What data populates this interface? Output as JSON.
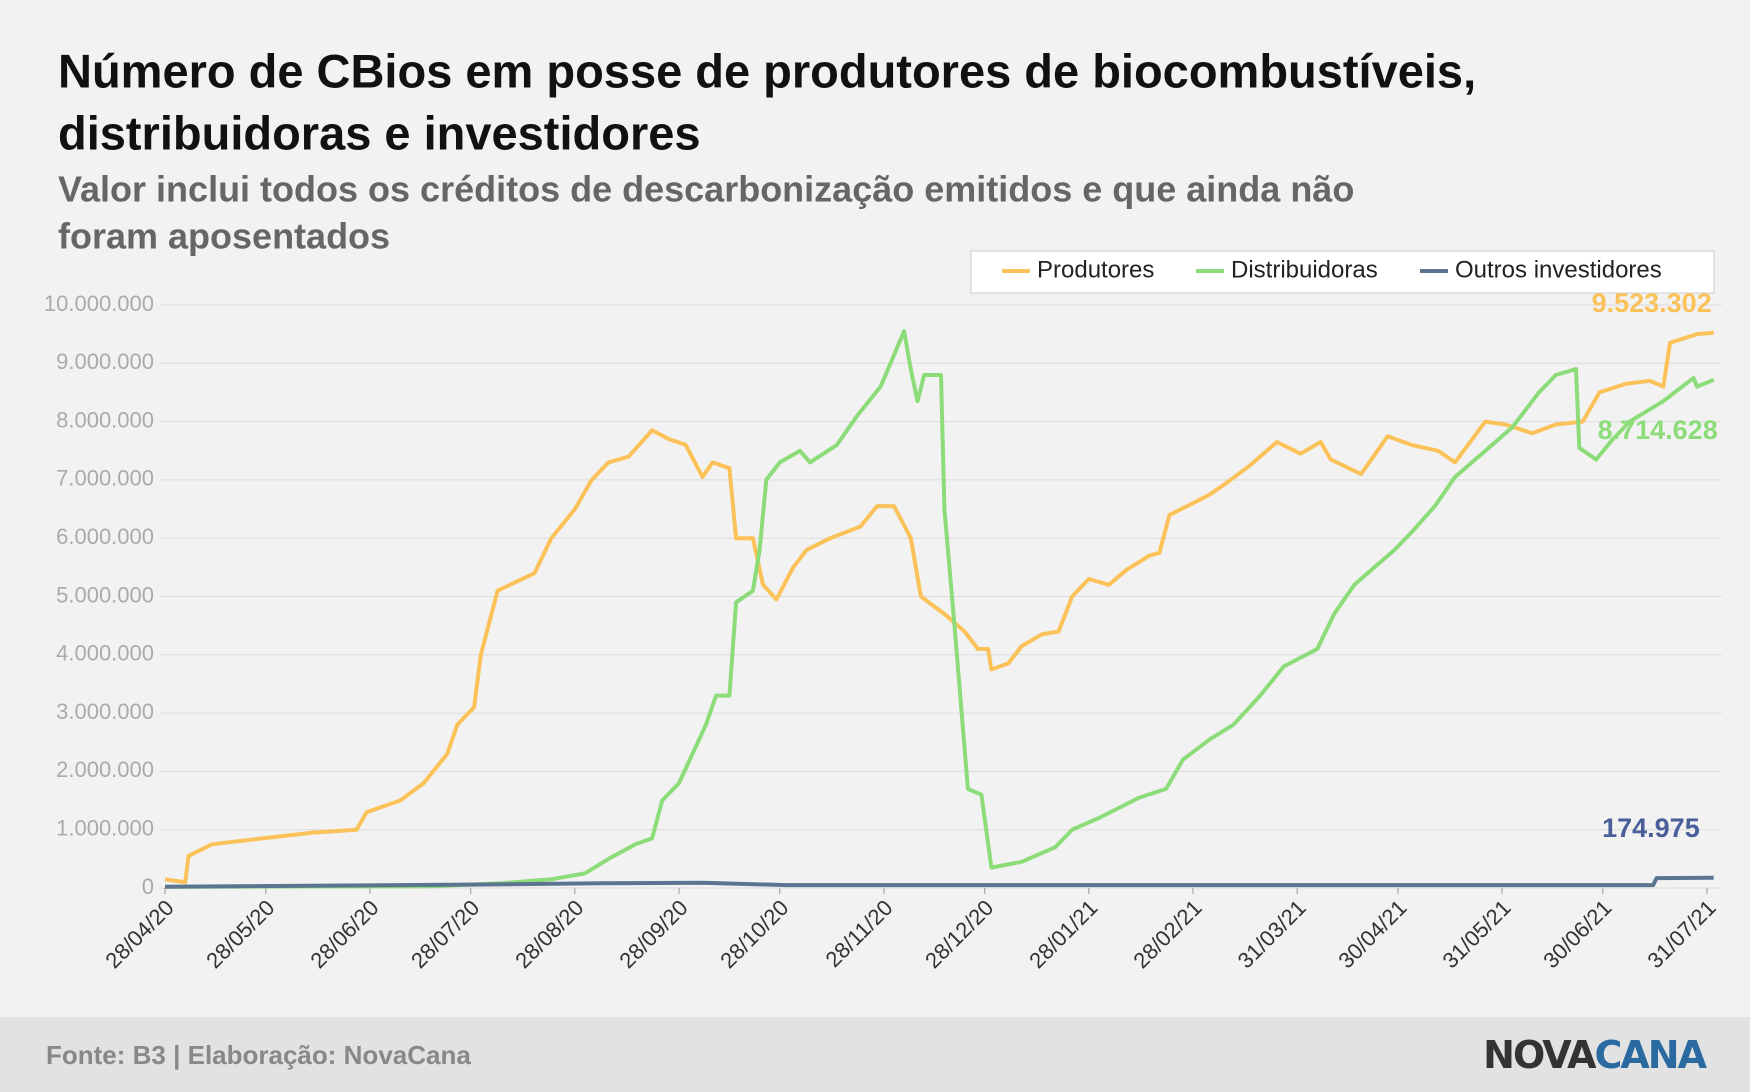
{
  "chart_data": {
    "type": "line",
    "title": [
      "Número de CBios em posse de produtores de biocombustíveis,",
      "distribuidoras e investidores"
    ],
    "subtitle": [
      "Valor inclui todos os créditos de descarbonização emitidos e que ainda não",
      "foram aposentados"
    ],
    "source": "Fonte: B3 | Elaboração: NovaCana",
    "logo": [
      "NOVA",
      "CANA"
    ],
    "ylim": [
      0,
      10000000
    ],
    "yticks": [
      0,
      {
        "value": 1000000,
        "label": "1.000.000"
      },
      {
        "value": 2000000,
        "label": "2.000.000"
      },
      {
        "value": 3000000,
        "label": "3.000.000"
      },
      {
        "value": 4000000,
        "label": "4.000.000"
      },
      {
        "value": 5000000,
        "label": "5.000.000"
      },
      {
        "value": 6000000,
        "label": "6.000.000"
      },
      {
        "value": 7000000,
        "label": "7.000.000"
      },
      {
        "value": 8000000,
        "label": "8.000.000"
      },
      {
        "value": 9000000,
        "label": "9.000.000"
      },
      {
        "value": 10000000,
        "label": "10.000.000"
      }
    ],
    "xlim": [
      "28/04/20",
      "02/08/21"
    ],
    "xticks": [
      "28/04/20",
      "28/05/20",
      "28/06/20",
      "28/07/20",
      "28/08/20",
      "28/09/20",
      "28/10/20",
      "28/11/20",
      "28/12/20",
      "28/01/21",
      "28/02/21",
      "31/03/21",
      "30/04/21",
      "31/05/21",
      "30/06/21",
      "31/07/21"
    ],
    "grid": true,
    "series": [
      {
        "name": "Produtores",
        "color": "#fcc25a",
        "x": [
          "28/04/20",
          "04/05/20",
          "05/05/20",
          "12/05/20",
          "27/05/20",
          "11/06/20",
          "24/06/20",
          "27/06/20",
          "07/07/20",
          "14/07/20",
          "21/07/20",
          "24/07/20",
          "29/07/20",
          "31/07/20",
          "05/08/20",
          "16/08/20",
          "21/08/20",
          "28/08/20",
          "02/09/20",
          "07/09/20",
          "13/09/20",
          "20/09/20",
          "25/09/20",
          "30/09/20",
          "05/10/20",
          "08/10/20",
          "13/10/20",
          "15/10/20",
          "20/10/20",
          "23/10/20",
          "27/10/20",
          "01/11/20",
          "05/11/20",
          "12/11/20",
          "21/11/20",
          "26/11/20",
          "01/12/20",
          "06/12/20",
          "09/12/20",
          "16/12/20",
          "22/12/20",
          "26/12/20",
          "29/12/20",
          "30/12/20",
          "04/01/21",
          "08/01/21",
          "14/01/21",
          "19/01/21",
          "23/01/21",
          "28/01/21",
          "03/02/21",
          "08/02/21",
          "15/02/21",
          "18/02/21",
          "21/02/21",
          "28/02/21",
          "05/03/21",
          "10/03/21",
          "17/03/21",
          "25/03/21",
          "01/04/21",
          "07/04/21",
          "10/04/21",
          "19/04/21",
          "27/04/21",
          "04/05/21",
          "12/05/21",
          "17/05/21",
          "26/05/21",
          "01/06/21",
          "09/06/21",
          "16/06/21",
          "24/06/21",
          "29/06/21",
          "07/07/21",
          "14/07/21",
          "18/07/21",
          "20/07/21",
          "28/07/21",
          "02/08/21"
        ],
        "values": [
          150000,
          100000,
          550000,
          750000,
          850000,
          950000,
          1000000,
          1300000,
          1500000,
          1800000,
          2300000,
          2800000,
          3100000,
          4000000,
          5100000,
          5400000,
          6000000,
          6500000,
          7000000,
          7300000,
          7400000,
          7850000,
          7700000,
          7600000,
          7050000,
          7300000,
          7200000,
          6000000,
          6000000,
          5200000,
          4950000,
          5500000,
          5800000,
          6000000,
          6200000,
          6550000,
          6550000,
          6000000,
          5000000,
          4700000,
          4400000,
          4100000,
          4100000,
          3750000,
          3850000,
          4150000,
          4350000,
          4400000,
          5000000,
          5300000,
          5200000,
          5450000,
          5700000,
          5750000,
          6400000,
          6600000,
          6750000,
          6950000,
          7250000,
          7650000,
          7450000,
          7650000,
          7350000,
          7100000,
          7750000,
          7600000,
          7500000,
          7300000,
          8000000,
          7950000,
          7800000,
          7950000,
          8000000,
          8500000,
          8650000,
          8700000,
          8600000,
          9350000,
          9500000,
          9523302
        ],
        "value_labels": [
          null,
          null,
          null,
          null,
          null,
          null,
          null,
          null,
          null,
          null,
          null,
          null,
          null,
          null,
          null,
          null,
          null,
          null,
          null,
          null,
          null,
          null,
          null,
          null,
          null,
          null,
          null,
          null,
          null,
          null,
          null,
          null,
          null,
          null,
          null,
          null,
          null,
          null,
          null,
          null,
          null,
          null,
          null,
          null,
          null,
          null,
          null,
          null,
          null,
          null,
          null,
          null,
          null,
          null,
          null,
          null,
          null,
          null,
          null,
          null,
          null,
          null,
          null,
          null,
          null,
          null,
          null,
          null,
          null,
          null,
          null,
          null,
          null,
          null,
          null,
          null,
          null,
          null,
          null,
          "9.523.302"
        ]
      },
      {
        "name": "Distribuidoras",
        "color": "#8ddc7a",
        "x": [
          "28/04/20",
          "17/07/20",
          "06/08/20",
          "21/08/20",
          "31/08/20",
          "07/09/20",
          "15/09/20",
          "20/09/20",
          "23/09/20",
          "28/09/20",
          "06/10/20",
          "09/10/20",
          "13/10/20",
          "15/10/20",
          "20/10/20",
          "22/10/20",
          "24/10/20",
          "28/10/20",
          "03/11/20",
          "06/11/20",
          "14/11/20",
          "20/11/20",
          "27/11/20",
          "04/12/20",
          "06/12/20",
          "08/12/20",
          "10/12/20",
          "15/12/20",
          "16/12/20",
          "19/12/20",
          "23/12/20",
          "27/12/20",
          "30/12/20",
          "08/01/21",
          "18/01/21",
          "23/01/21",
          "31/01/21",
          "12/02/21",
          "20/02/21",
          "25/02/21",
          "05/03/21",
          "12/03/21",
          "20/03/21",
          "27/03/21",
          "06/04/21",
          "11/04/21",
          "17/04/21",
          "29/04/21",
          "04/05/21",
          "11/05/21",
          "17/05/21",
          "26/05/21",
          "03/06/21",
          "11/06/21",
          "16/06/21",
          "22/06/21",
          "23/06/21",
          "28/06/21",
          "03/07/21",
          "08/07/21",
          "18/07/21",
          "27/07/21",
          "28/07/21",
          "02/08/21"
        ],
        "values": [
          20000,
          30000,
          80000,
          150000,
          250000,
          500000,
          750000,
          850000,
          1500000,
          1800000,
          2800000,
          3300000,
          3300000,
          4900000,
          5100000,
          5800000,
          7000000,
          7300000,
          7500000,
          7300000,
          7600000,
          8100000,
          8600000,
          9550000,
          8900000,
          8350000,
          8800000,
          8800000,
          6500000,
          4500000,
          1700000,
          1600000,
          350000,
          450000,
          700000,
          1000000,
          1200000,
          1550000,
          1700000,
          2200000,
          2550000,
          2800000,
          3300000,
          3800000,
          4100000,
          4700000,
          5200000,
          5800000,
          6100000,
          6550000,
          7050000,
          7500000,
          7900000,
          8500000,
          8800000,
          8900000,
          7550000,
          7350000,
          7700000,
          8000000,
          8350000,
          8750000,
          8600000,
          8714628
        ],
        "value_labels": [
          null,
          null,
          null,
          null,
          null,
          null,
          null,
          null,
          null,
          null,
          null,
          null,
          null,
          null,
          null,
          null,
          null,
          null,
          null,
          null,
          null,
          null,
          null,
          null,
          null,
          null,
          null,
          null,
          null,
          null,
          null,
          null,
          null,
          null,
          null,
          null,
          null,
          null,
          null,
          null,
          null,
          null,
          null,
          null,
          null,
          null,
          null,
          null,
          null,
          null,
          null,
          null,
          null,
          null,
          null,
          null,
          null,
          null,
          null,
          null,
          null,
          null,
          null,
          "8.714.628"
        ]
      },
      {
        "name": "Outros investidores",
        "color": "#5b7590",
        "x": [
          "28/04/20",
          "01/08/20",
          "05/09/20",
          "05/10/20",
          "30/10/20",
          "22/02/21",
          "15/07/21",
          "16/07/21",
          "02/08/21"
        ],
        "values": [
          20000,
          60000,
          80000,
          90000,
          50000,
          50000,
          50000,
          170000,
          174975
        ],
        "value_labels": [
          null,
          null,
          null,
          null,
          null,
          null,
          null,
          null,
          "174.975"
        ],
        "label_color": "#4a5f9a"
      }
    ]
  }
}
